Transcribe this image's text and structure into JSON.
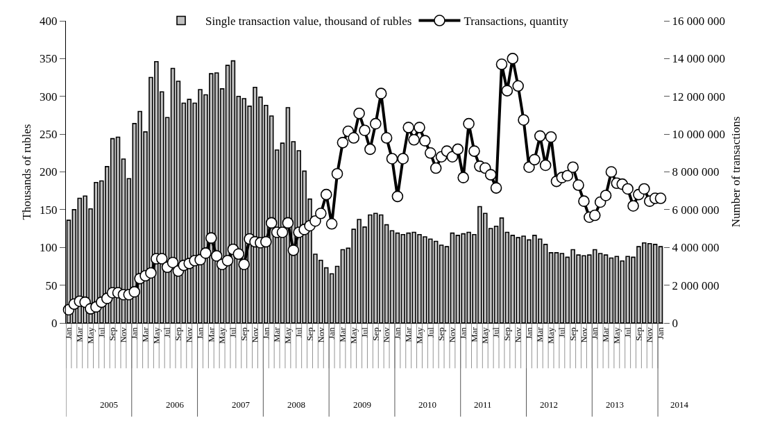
{
  "chart_data": {
    "type": "bar",
    "ylabel": "Thousands of rubles",
    "y2label": "Number of transactions",
    "categories": [
      "Jan",
      null,
      "Mar",
      null,
      "May",
      null,
      "Jul",
      null,
      "Sep",
      null,
      "Nov",
      null,
      "Jan",
      null,
      "Mar",
      null,
      "May",
      null,
      "Jul",
      null,
      "Sep",
      null,
      "Nov",
      null,
      "Jan",
      null,
      "Mar",
      null,
      "May",
      null,
      "Jul",
      null,
      "Sep",
      null,
      "Nov",
      null,
      "Jan",
      null,
      "Mar",
      null,
      "May",
      null,
      "Jul",
      null,
      "Sep",
      null,
      "Nov",
      null,
      "Jan",
      null,
      "Mar",
      null,
      "May",
      null,
      "Jul",
      null,
      "Sep",
      null,
      "Nov",
      null,
      "Jan",
      null,
      "Mar",
      null,
      "May",
      null,
      "Jul",
      null,
      "Sep",
      null,
      "Nov",
      null,
      "Jan",
      null,
      "Mar",
      null,
      "May",
      null,
      "Jul",
      null,
      "Sep",
      null,
      "Nov",
      null,
      "Jan",
      null,
      "Mar",
      null,
      "May",
      null,
      "Jul",
      null,
      "Sep",
      null,
      "Nov",
      null,
      "Jan",
      null,
      "Mar",
      null,
      "May",
      null,
      "Jul",
      null,
      "Sep",
      null,
      "Nov",
      null,
      "Jan"
    ],
    "series": [
      {
        "name": "Single transaction value, thousand of rubles",
        "color": "#c0c0c0",
        "values": [
          136,
          150,
          165,
          168,
          151,
          186,
          188,
          207,
          244,
          246,
          217,
          191,
          264,
          280,
          253,
          325,
          346,
          306,
          272,
          337,
          320,
          291,
          296,
          291,
          309,
          302,
          330,
          331,
          310,
          341,
          347,
          300,
          297,
          287,
          312,
          299,
          288,
          274,
          229,
          238,
          285,
          240,
          228,
          201,
          164,
          91,
          83,
          73,
          65,
          75,
          97,
          99,
          124,
          137,
          127,
          143,
          145,
          143,
          130,
          122,
          119,
          117,
          119,
          120,
          117,
          114,
          111,
          108,
          103,
          101,
          119,
          116,
          118,
          120,
          117,
          154,
          145,
          125,
          128,
          139,
          120,
          116,
          113,
          115,
          110,
          116,
          111,
          104,
          93,
          93,
          92,
          87,
          97,
          90,
          89,
          90,
          97,
          92,
          90,
          86,
          88,
          82,
          88,
          87,
          101,
          106,
          105,
          104,
          101
        ]
      },
      {
        "name": "Transactions, quantity",
        "type": "line",
        "axis": "y2",
        "color": "#000000",
        "values": [
          700000,
          1000000,
          1150000,
          1100000,
          750000,
          850000,
          1100000,
          1300000,
          1600000,
          1600000,
          1500000,
          1500000,
          1650000,
          2350000,
          2500000,
          2650000,
          3400000,
          3400000,
          2950000,
          3200000,
          2750000,
          3050000,
          3150000,
          3300000,
          3350000,
          3700000,
          4500000,
          3550000,
          3100000,
          3300000,
          3900000,
          3650000,
          3100000,
          4450000,
          4300000,
          4250000,
          4300000,
          5300000,
          4800000,
          4800000,
          5300000,
          3850000,
          4800000,
          4950000,
          5150000,
          5400000,
          5800000,
          6800000,
          5250000,
          7900000,
          9550000,
          10150000,
          9800000,
          11100000,
          10200000,
          9200000,
          10550000,
          12150000,
          9800000,
          8700000,
          6700000,
          8700000,
          10350000,
          9700000,
          10350000,
          9650000,
          9000000,
          8200000,
          8800000,
          9100000,
          8800000,
          9200000,
          7700000,
          10550000,
          9100000,
          8300000,
          8200000,
          7850000,
          7150000,
          13700000,
          12300000,
          14000000,
          12550000,
          10750000,
          8250000,
          8650000,
          9900000,
          8350000,
          9850000,
          7500000,
          7700000,
          7800000,
          8250000,
          7300000,
          6450000,
          5600000,
          5700000,
          6400000,
          6750000,
          8000000,
          7400000,
          7350000,
          7100000,
          6200000,
          6800000,
          7100000,
          6450000,
          6600000,
          6600000
        ]
      }
    ],
    "ylim": [
      0,
      400
    ],
    "yticks": [
      0,
      50,
      100,
      150,
      200,
      250,
      300,
      350,
      400
    ],
    "y2lim": [
      0,
      16000000
    ],
    "y2ticks": [
      0,
      {
        "value": 2000000,
        "label": "2 000 000"
      },
      {
        "value": 4000000,
        "label": "4 000 000"
      },
      {
        "value": 6000000,
        "label": "6 000 000"
      },
      {
        "value": 8000000,
        "label": "8 000 000"
      },
      {
        "value": 10000000,
        "label": "10 000 000"
      },
      {
        "value": 12000000,
        "label": "12 000 000"
      },
      {
        "value": 14000000,
        "label": "14 000 000"
      },
      {
        "value": 16000000,
        "label": "16 000 000"
      }
    ],
    "annotations": [
      "2005",
      "2006",
      "2007",
      "2008",
      "2009",
      "2010",
      "2011",
      "2012",
      "2013",
      "2014"
    ],
    "grid": false,
    "legend": "top",
    "marker": "circle",
    "line_style": "solid"
  }
}
